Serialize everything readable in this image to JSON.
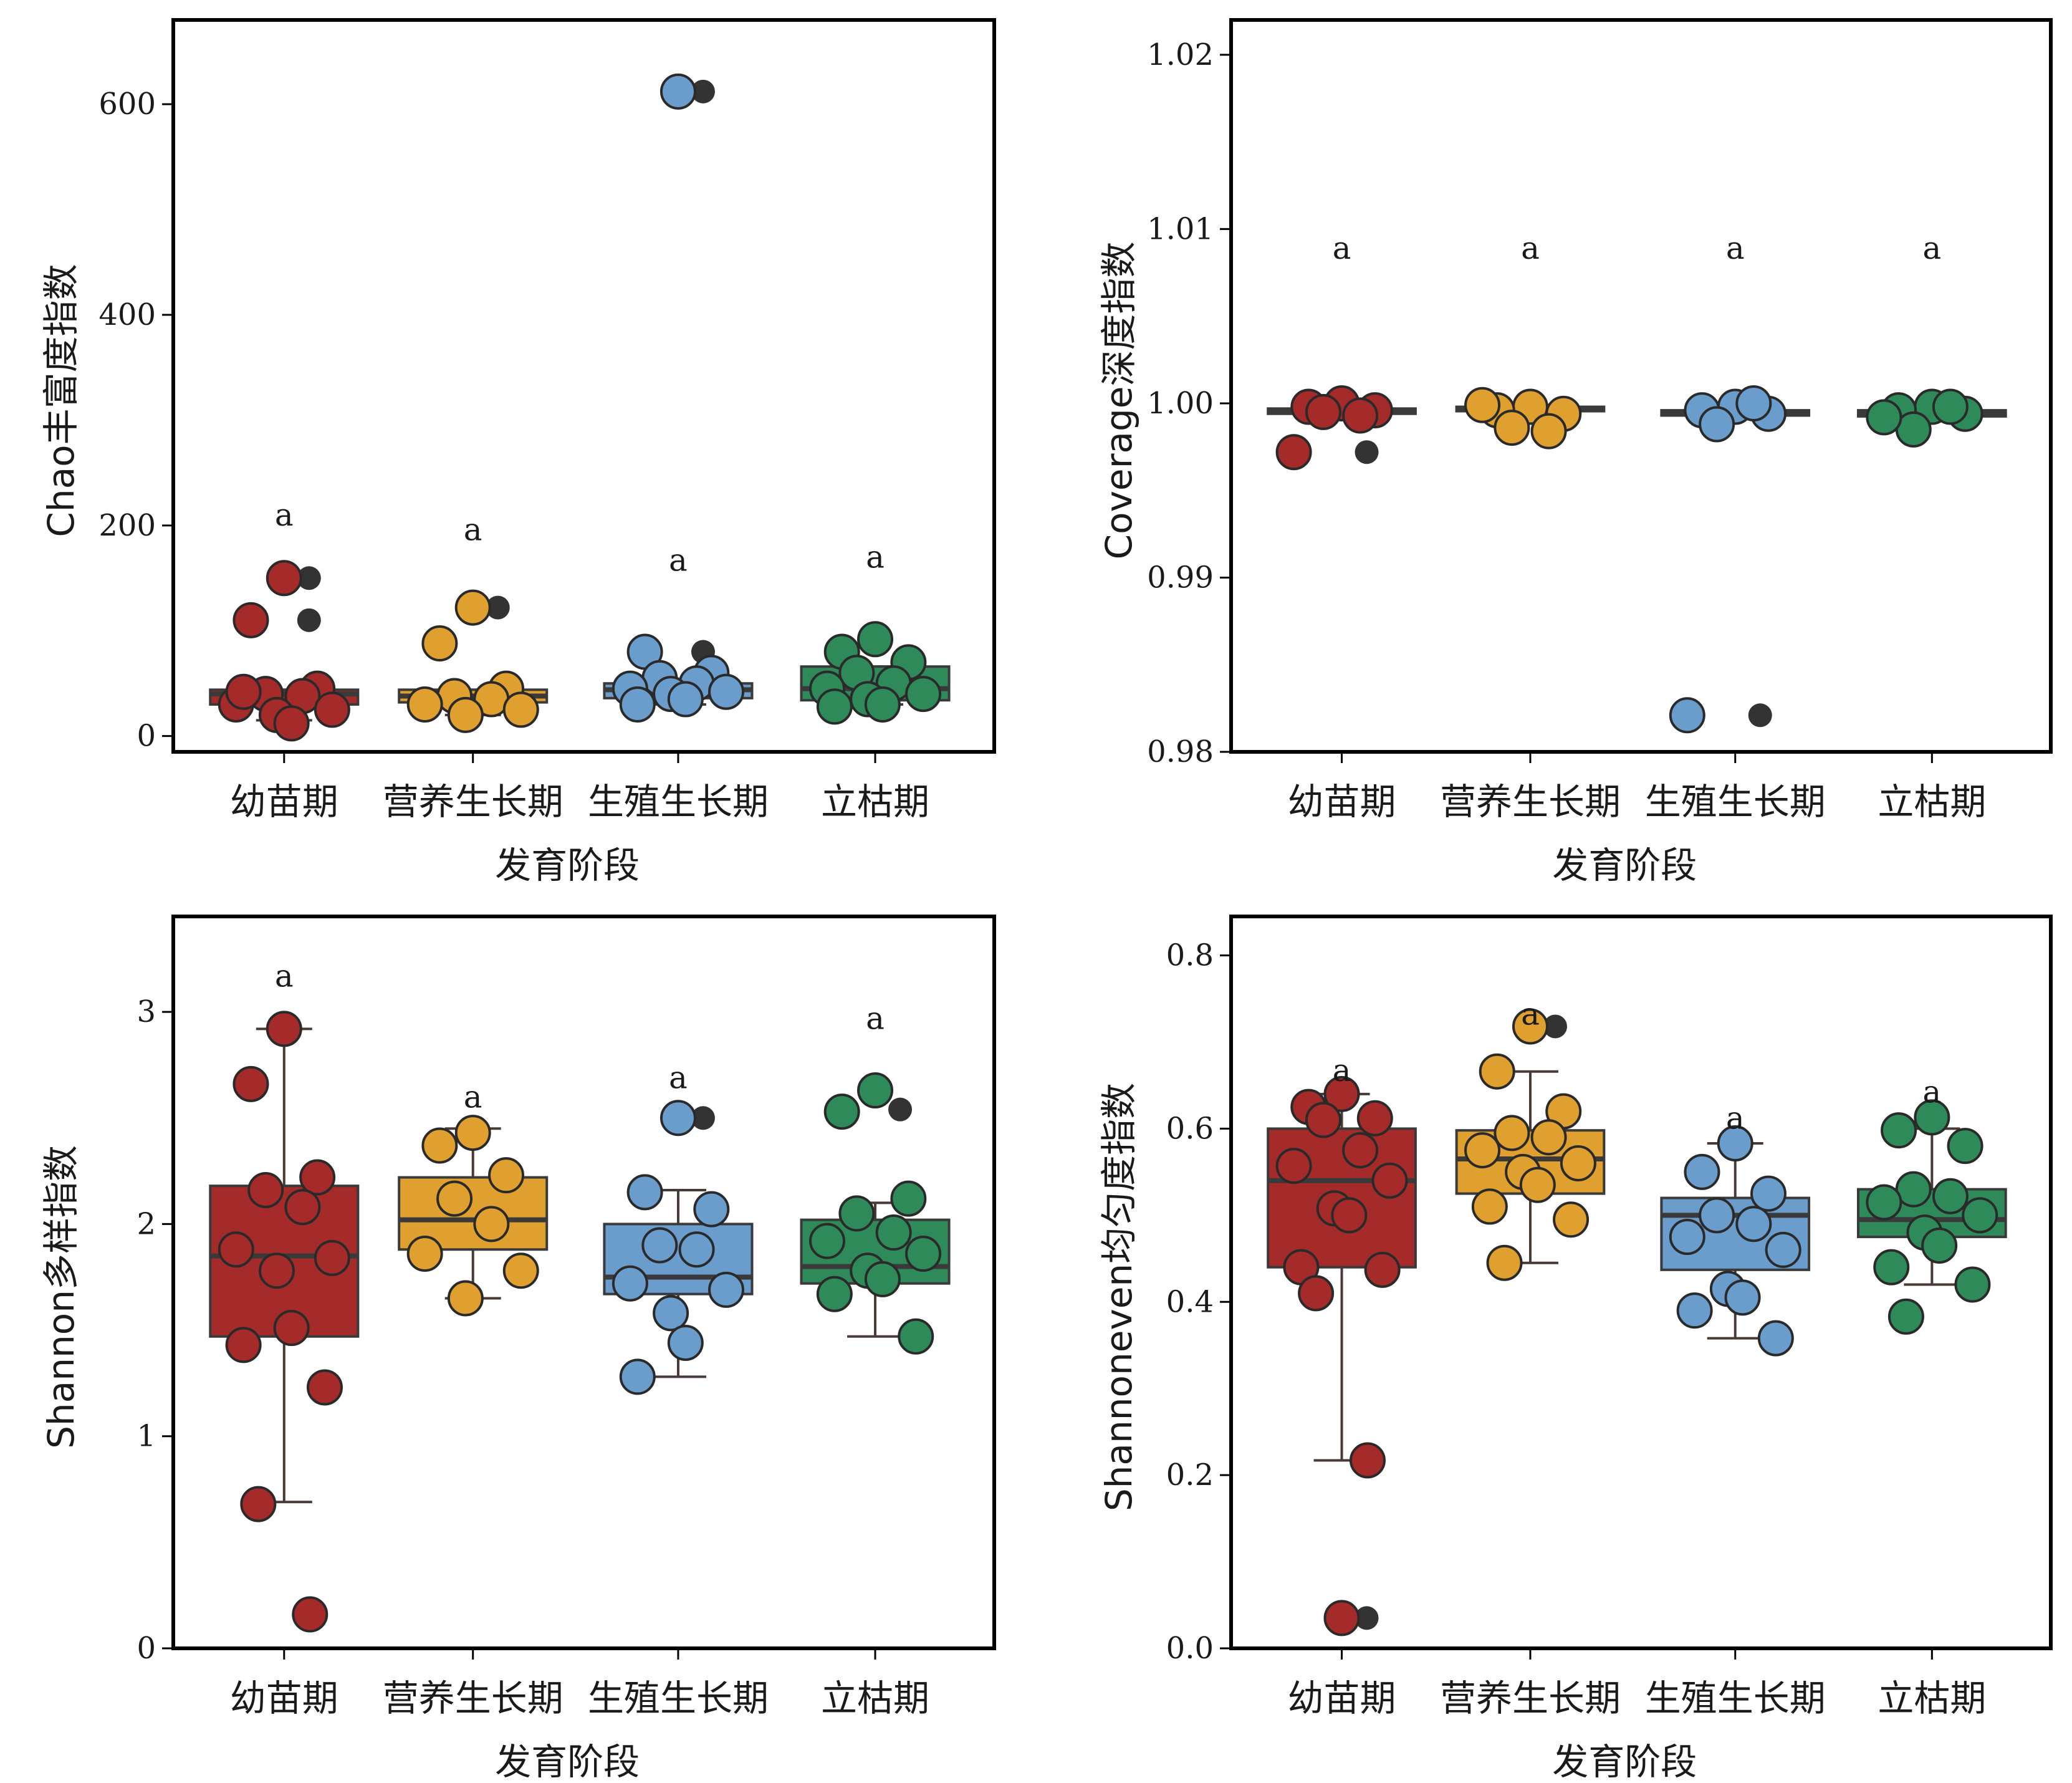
{
  "colors": {
    "幼苗期": "#a52a2a",
    "营养生长期": "#e0a030",
    "生殖生长期": "#6a9ccc",
    "立枯期": "#2f8a5a",
    "outlier": "#333333",
    "median": "#3a3a3a"
  },
  "chart_data": [
    {
      "type": "box",
      "xlabel": "发育阶段",
      "ylabel": "Chao丰富度指数",
      "categories": [
        "幼苗期",
        "营养生长期",
        "生殖生长期",
        "立枯期"
      ],
      "ylim": [
        -15,
        680
      ],
      "yticks": [
        0,
        200,
        400,
        600
      ],
      "ytick_labels": [
        "0",
        "200",
        "400",
        "600"
      ],
      "significance": [
        "a",
        "a",
        "a",
        "a"
      ],
      "sig_y": [
        200,
        186,
        157,
        160
      ],
      "boxes": [
        {
          "q1": 30,
          "median": 40,
          "q3": 44,
          "whisker_low": 15,
          "whisker_high": 44,
          "outliers": [
            150,
            110
          ]
        },
        {
          "q1": 32,
          "median": 38,
          "q3": 44,
          "whisker_low": 20,
          "whisker_high": 44,
          "outliers": [
            122
          ]
        },
        {
          "q1": 36,
          "median": 44,
          "q3": 50,
          "whisker_low": 30,
          "whisker_high": 50,
          "outliers": [
            612,
            80
          ]
        },
        {
          "q1": 34,
          "median": 45,
          "q3": 66,
          "whisker_low": 30,
          "whisker_high": 66,
          "outliers": []
        }
      ],
      "points": [
        [
          150,
          110,
          45,
          40,
          38,
          30,
          25,
          20,
          12,
          42
        ],
        [
          122,
          88,
          45,
          38,
          35,
          30,
          25,
          20
        ],
        [
          612,
          80,
          60,
          55,
          50,
          45,
          42,
          40,
          35,
          30
        ],
        [
          92,
          80,
          70,
          60,
          50,
          45,
          40,
          35,
          30,
          28
        ]
      ]
    },
    {
      "type": "box",
      "xlabel": "发育阶段",
      "ylabel": "Coverage深度指数",
      "categories": [
        "幼苗期",
        "营养生长期",
        "生殖生长期",
        "立枯期"
      ],
      "ylim": [
        0.98,
        1.022
      ],
      "yticks": [
        0.98,
        0.99,
        1.0,
        1.01,
        1.02
      ],
      "ytick_labels": [
        "0.98",
        "0.99",
        "1.00",
        "1.01",
        "1.02"
      ],
      "significance": [
        "a",
        "a",
        "a",
        "a"
      ],
      "sig_y": [
        1.0083,
        1.0083,
        1.0083,
        1.0083
      ],
      "boxes": [
        {
          "q1": 0.9994,
          "median": 0.99955,
          "q3": 0.9997,
          "whisker_low": 0.9994,
          "whisker_high": 0.9997,
          "outliers": [
            0.9972
          ]
        },
        {
          "q1": 0.99955,
          "median": 0.99965,
          "q3": 0.9998,
          "whisker_low": 0.99955,
          "whisker_high": 0.9998,
          "outliers": [
            0.9985
          ]
        },
        {
          "q1": 0.9993,
          "median": 0.99945,
          "q3": 0.9996,
          "whisker_low": 0.9993,
          "whisker_high": 0.9996,
          "outliers": [
            0.9821
          ]
        },
        {
          "q1": 0.99925,
          "median": 0.9994,
          "q3": 0.9996,
          "whisker_low": 0.99925,
          "whisker_high": 0.9996,
          "outliers": []
        }
      ],
      "points": [
        [
          1.0,
          0.9998,
          0.9996,
          0.9995,
          0.9993,
          0.9972
        ],
        [
          0.9998,
          0.9996,
          0.9994,
          0.9986,
          0.9984,
          0.9999
        ],
        [
          0.9998,
          0.9996,
          0.9994,
          0.9988,
          1.0,
          0.9821
        ],
        [
          0.9998,
          0.9996,
          0.9994,
          0.9985,
          0.9998,
          0.9992
        ]
      ]
    },
    {
      "type": "box",
      "xlabel": "发育阶段",
      "ylabel": "Shannon多样指数",
      "categories": [
        "幼苗期",
        "营养生长期",
        "生殖生长期",
        "立枯期"
      ],
      "ylim": [
        0,
        3.45
      ],
      "yticks": [
        0,
        1,
        2,
        3
      ],
      "ytick_labels": [
        "0",
        "1",
        "2",
        "3"
      ],
      "significance": [
        "a",
        "a",
        "a",
        "a"
      ],
      "sig_y": [
        3.12,
        2.55,
        2.64,
        2.92
      ],
      "boxes": [
        {
          "q1": 1.47,
          "median": 1.85,
          "q3": 2.18,
          "whisker_low": 0.69,
          "whisker_high": 2.92,
          "outliers": [
            0.16
          ]
        },
        {
          "q1": 1.88,
          "median": 2.02,
          "q3": 2.22,
          "whisker_low": 1.65,
          "whisker_high": 2.45,
          "outliers": []
        },
        {
          "q1": 1.67,
          "median": 1.75,
          "q3": 2.0,
          "whisker_low": 1.28,
          "whisker_high": 2.16,
          "outliers": [
            2.5
          ]
        },
        {
          "q1": 1.72,
          "median": 1.8,
          "q3": 2.02,
          "whisker_low": 1.47,
          "whisker_high": 2.1,
          "outliers": [
            2.54
          ]
        }
      ],
      "points": [
        [
          2.92,
          2.66,
          2.22,
          2.16,
          2.08,
          1.88,
          1.84,
          1.78,
          1.51,
          1.43,
          1.23,
          0.68,
          0.16
        ],
        [
          2.43,
          2.37,
          2.23,
          2.12,
          2.0,
          1.86,
          1.78,
          1.65
        ],
        [
          2.5,
          2.15,
          2.07,
          1.9,
          1.88,
          1.72,
          1.69,
          1.58,
          1.44,
          1.28
        ],
        [
          2.63,
          2.53,
          2.12,
          2.05,
          1.96,
          1.92,
          1.86,
          1.78,
          1.74,
          1.67,
          1.47
        ]
      ]
    },
    {
      "type": "box",
      "xlabel": "发育阶段",
      "ylabel": "Shannoneven均匀度指数",
      "categories": [
        "幼苗期",
        "营养生长期",
        "生殖生长期",
        "立枯期"
      ],
      "ylim": [
        0,
        0.845
      ],
      "yticks": [
        0.0,
        0.2,
        0.4,
        0.6,
        0.8
      ],
      "ytick_labels": [
        "0.0",
        "0.2",
        "0.4",
        "0.6",
        "0.8"
      ],
      "significance": [
        "a",
        "a",
        "a",
        "a"
      ],
      "sig_y": [
        0.655,
        0.72,
        0.6,
        0.63
      ],
      "boxes": [
        {
          "q1": 0.44,
          "median": 0.54,
          "q3": 0.6,
          "whisker_low": 0.217,
          "whisker_high": 0.64,
          "outliers": [
            0.035
          ]
        },
        {
          "q1": 0.525,
          "median": 0.565,
          "q3": 0.598,
          "whisker_low": 0.445,
          "whisker_high": 0.666,
          "outliers": [
            0.718
          ]
        },
        {
          "q1": 0.437,
          "median": 0.5,
          "q3": 0.52,
          "whisker_low": 0.358,
          "whisker_high": 0.583,
          "outliers": []
        },
        {
          "q1": 0.475,
          "median": 0.495,
          "q3": 0.53,
          "whisker_low": 0.42,
          "whisker_high": 0.6,
          "outliers": []
        }
      ],
      "points": [
        [
          0.64,
          0.625,
          0.612,
          0.61,
          0.575,
          0.557,
          0.54,
          0.508,
          0.5,
          0.44,
          0.437,
          0.41,
          0.217,
          0.035
        ],
        [
          0.718,
          0.666,
          0.62,
          0.595,
          0.59,
          0.575,
          0.56,
          0.55,
          0.535,
          0.51,
          0.495,
          0.445
        ],
        [
          0.583,
          0.55,
          0.525,
          0.5,
          0.49,
          0.475,
          0.46,
          0.415,
          0.405,
          0.39,
          0.358
        ],
        [
          0.613,
          0.598,
          0.58,
          0.53,
          0.522,
          0.515,
          0.5,
          0.48,
          0.465,
          0.44,
          0.42,
          0.383
        ]
      ]
    }
  ]
}
